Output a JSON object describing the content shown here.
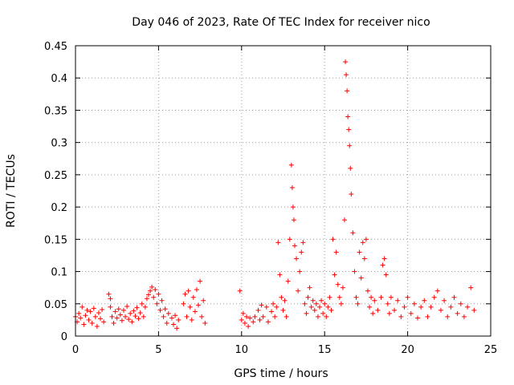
{
  "chart_data": {
    "type": "scatter",
    "title": "Day 046 of 2023, Rate Of TEC Index for receiver nico",
    "xlabel": "GPS time / hours",
    "ylabel": "ROTI / TECUs",
    "xlim": [
      0,
      25
    ],
    "ylim": [
      0,
      0.45
    ],
    "xticks": [
      0,
      5,
      10,
      15,
      20,
      25
    ],
    "xtick_labels": [
      "0",
      "5",
      "10",
      "15",
      "20",
      "25"
    ],
    "yticks": [
      0,
      0.05,
      0.1,
      0.15,
      0.2,
      0.25,
      0.3,
      0.35,
      0.4,
      0.45
    ],
    "ytick_labels": [
      "0",
      "0.05",
      "0.1",
      "0.15",
      "0.2",
      "0.25",
      "0.3",
      "0.35",
      "0.4",
      "0.45"
    ],
    "grid": true,
    "marker": "+",
    "color": "#ff0000",
    "series": [
      {
        "name": "ROTI",
        "points": [
          [
            0.0,
            0.03
          ],
          [
            0.1,
            0.022
          ],
          [
            0.2,
            0.035
          ],
          [
            0.3,
            0.028
          ],
          [
            0.4,
            0.045
          ],
          [
            0.5,
            0.018
          ],
          [
            0.6,
            0.032
          ],
          [
            0.7,
            0.04
          ],
          [
            0.8,
            0.025
          ],
          [
            0.9,
            0.038
          ],
          [
            1.0,
            0.02
          ],
          [
            1.1,
            0.043
          ],
          [
            1.2,
            0.03
          ],
          [
            1.3,
            0.015
          ],
          [
            1.4,
            0.036
          ],
          [
            1.5,
            0.027
          ],
          [
            1.6,
            0.041
          ],
          [
            1.7,
            0.022
          ],
          [
            2.0,
            0.065
          ],
          [
            2.1,
            0.058
          ],
          [
            2.1,
            0.045
          ],
          [
            2.2,
            0.03
          ],
          [
            2.3,
            0.02
          ],
          [
            2.4,
            0.038
          ],
          [
            2.5,
            0.028
          ],
          [
            2.6,
            0.042
          ],
          [
            2.7,
            0.033
          ],
          [
            2.8,
            0.024
          ],
          [
            2.9,
            0.04
          ],
          [
            3.0,
            0.03
          ],
          [
            3.1,
            0.046
          ],
          [
            3.2,
            0.026
          ],
          [
            3.3,
            0.035
          ],
          [
            3.4,
            0.022
          ],
          [
            3.5,
            0.039
          ],
          [
            3.6,
            0.031
          ],
          [
            3.7,
            0.044
          ],
          [
            3.8,
            0.027
          ],
          [
            3.9,
            0.036
          ],
          [
            4.0,
            0.05
          ],
          [
            4.1,
            0.03
          ],
          [
            4.2,
            0.045
          ],
          [
            4.3,
            0.058
          ],
          [
            4.4,
            0.064
          ],
          [
            4.5,
            0.07
          ],
          [
            4.6,
            0.076
          ],
          [
            4.7,
            0.06
          ],
          [
            4.8,
            0.072
          ],
          [
            4.9,
            0.05
          ],
          [
            5.0,
            0.065
          ],
          [
            5.1,
            0.04
          ],
          [
            5.2,
            0.055
          ],
          [
            5.3,
            0.03
          ],
          [
            5.4,
            0.042
          ],
          [
            5.5,
            0.02
          ],
          [
            5.6,
            0.035
          ],
          [
            5.8,
            0.028
          ],
          [
            5.9,
            0.018
          ],
          [
            6.0,
            0.032
          ],
          [
            6.1,
            0.012
          ],
          [
            6.2,
            0.025
          ],
          [
            6.5,
            0.05
          ],
          [
            6.6,
            0.065
          ],
          [
            6.7,
            0.03
          ],
          [
            6.8,
            0.07
          ],
          [
            6.9,
            0.045
          ],
          [
            7.0,
            0.025
          ],
          [
            7.1,
            0.06
          ],
          [
            7.2,
            0.038
          ],
          [
            7.3,
            0.072
          ],
          [
            7.4,
            0.048
          ],
          [
            7.5,
            0.085
          ],
          [
            7.6,
            0.03
          ],
          [
            7.7,
            0.055
          ],
          [
            7.8,
            0.02
          ],
          [
            9.9,
            0.07
          ],
          [
            10.0,
            0.025
          ],
          [
            10.1,
            0.035
          ],
          [
            10.2,
            0.02
          ],
          [
            10.3,
            0.03
          ],
          [
            10.4,
            0.015
          ],
          [
            10.5,
            0.028
          ],
          [
            10.7,
            0.022
          ],
          [
            10.8,
            0.03
          ],
          [
            11.0,
            0.04
          ],
          [
            11.1,
            0.025
          ],
          [
            11.2,
            0.048
          ],
          [
            11.3,
            0.03
          ],
          [
            11.5,
            0.045
          ],
          [
            11.6,
            0.022
          ],
          [
            11.8,
            0.038
          ],
          [
            11.9,
            0.05
          ],
          [
            12.0,
            0.03
          ],
          [
            12.1,
            0.045
          ],
          [
            12.2,
            0.145
          ],
          [
            12.3,
            0.095
          ],
          [
            12.4,
            0.06
          ],
          [
            12.5,
            0.04
          ],
          [
            12.6,
            0.055
          ],
          [
            12.7,
            0.03
          ],
          [
            12.8,
            0.085
          ],
          [
            12.9,
            0.15
          ],
          [
            13.0,
            0.265
          ],
          [
            13.05,
            0.23
          ],
          [
            13.1,
            0.2
          ],
          [
            13.15,
            0.18
          ],
          [
            13.2,
            0.14
          ],
          [
            13.3,
            0.12
          ],
          [
            13.4,
            0.07
          ],
          [
            13.5,
            0.1
          ],
          [
            13.6,
            0.13
          ],
          [
            13.7,
            0.145
          ],
          [
            13.8,
            0.05
          ],
          [
            13.9,
            0.035
          ],
          [
            14.0,
            0.06
          ],
          [
            14.1,
            0.075
          ],
          [
            14.2,
            0.045
          ],
          [
            14.3,
            0.055
          ],
          [
            14.4,
            0.04
          ],
          [
            14.5,
            0.05
          ],
          [
            14.6,
            0.03
          ],
          [
            14.7,
            0.045
          ],
          [
            14.8,
            0.055
          ],
          [
            14.9,
            0.035
          ],
          [
            15.0,
            0.05
          ],
          [
            15.1,
            0.03
          ],
          [
            15.2,
            0.045
          ],
          [
            15.3,
            0.06
          ],
          [
            15.4,
            0.04
          ],
          [
            15.5,
            0.15
          ],
          [
            15.6,
            0.095
          ],
          [
            15.7,
            0.13
          ],
          [
            15.8,
            0.08
          ],
          [
            15.9,
            0.06
          ],
          [
            16.0,
            0.05
          ],
          [
            16.1,
            0.075
          ],
          [
            16.2,
            0.18
          ],
          [
            16.25,
            0.425
          ],
          [
            16.3,
            0.405
          ],
          [
            16.35,
            0.38
          ],
          [
            16.4,
            0.34
          ],
          [
            16.45,
            0.32
          ],
          [
            16.5,
            0.295
          ],
          [
            16.55,
            0.26
          ],
          [
            16.6,
            0.22
          ],
          [
            16.7,
            0.16
          ],
          [
            16.8,
            0.1
          ],
          [
            16.9,
            0.06
          ],
          [
            17.0,
            0.05
          ],
          [
            17.1,
            0.13
          ],
          [
            17.2,
            0.09
          ],
          [
            17.3,
            0.145
          ],
          [
            17.4,
            0.12
          ],
          [
            17.5,
            0.15
          ],
          [
            17.6,
            0.07
          ],
          [
            17.7,
            0.045
          ],
          [
            17.8,
            0.06
          ],
          [
            17.9,
            0.035
          ],
          [
            18.0,
            0.055
          ],
          [
            18.2,
            0.04
          ],
          [
            18.4,
            0.06
          ],
          [
            18.5,
            0.11
          ],
          [
            18.6,
            0.12
          ],
          [
            18.7,
            0.095
          ],
          [
            18.8,
            0.05
          ],
          [
            18.9,
            0.035
          ],
          [
            19.0,
            0.06
          ],
          [
            19.2,
            0.04
          ],
          [
            19.4,
            0.055
          ],
          [
            19.6,
            0.03
          ],
          [
            19.8,
            0.045
          ],
          [
            20.0,
            0.06
          ],
          [
            20.2,
            0.035
          ],
          [
            20.4,
            0.05
          ],
          [
            20.6,
            0.028
          ],
          [
            20.8,
            0.045
          ],
          [
            21.0,
            0.055
          ],
          [
            21.2,
            0.03
          ],
          [
            21.4,
            0.045
          ],
          [
            21.6,
            0.06
          ],
          [
            21.8,
            0.07
          ],
          [
            22.0,
            0.04
          ],
          [
            22.2,
            0.055
          ],
          [
            22.4,
            0.03
          ],
          [
            22.6,
            0.045
          ],
          [
            22.8,
            0.06
          ],
          [
            23.0,
            0.035
          ],
          [
            23.2,
            0.05
          ],
          [
            23.4,
            0.03
          ],
          [
            23.6,
            0.045
          ],
          [
            23.8,
            0.075
          ],
          [
            24.0,
            0.04
          ]
        ]
      }
    ]
  }
}
